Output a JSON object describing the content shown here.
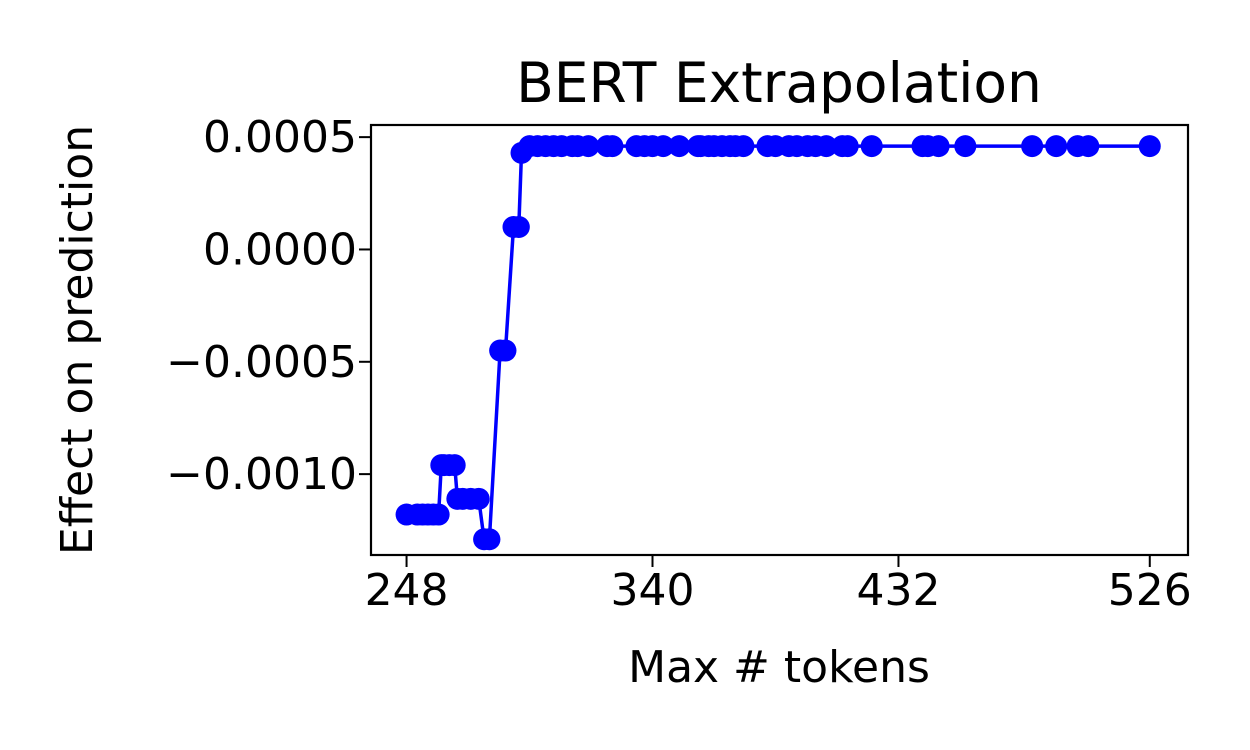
{
  "chart_data": {
    "type": "line",
    "title": "BERT Extrapolation",
    "xlabel": "Max # tokens",
    "ylabel": "Effect on prediction",
    "xlim": [
      234.7,
      540.3
    ],
    "ylim": [
      -0.00136,
      0.000554
    ],
    "x_ticks": [
      248,
      340,
      432,
      526
    ],
    "x_tick_labels": [
      "248",
      "340",
      "432",
      "526"
    ],
    "y_ticks": [
      -0.001,
      -0.0005,
      0.0,
      0.0005
    ],
    "y_tick_labels": [
      "−0.0010",
      "−0.0005",
      "0.0000",
      "0.0005"
    ],
    "grid": false,
    "legend": "none",
    "series": [
      {
        "color": "#0000ff",
        "marker": "circle",
        "x": [
          248,
          252,
          254,
          256,
          258,
          260,
          261,
          262,
          264,
          266,
          267,
          269,
          272,
          275,
          277,
          279,
          283,
          285,
          288,
          290,
          291,
          294,
          297,
          300,
          303,
          306,
          310,
          312,
          316,
          323,
          325,
          334,
          337,
          340,
          344,
          350,
          357,
          358,
          361,
          363,
          366,
          369,
          371,
          374,
          383,
          386,
          391,
          394,
          398,
          401,
          405,
          411,
          413,
          422,
          441,
          443,
          447,
          457,
          482,
          491,
          499,
          503,
          526
        ],
        "y": [
          -0.00118,
          -0.00118,
          -0.00118,
          -0.00118,
          -0.00118,
          -0.00118,
          -0.00096,
          -0.00096,
          -0.00096,
          -0.00096,
          -0.00111,
          -0.00111,
          -0.00111,
          -0.00111,
          -0.00129,
          -0.00129,
          -0.00045,
          -0.00045,
          0.0001,
          0.0001,
          0.00043,
          0.00046,
          0.00046,
          0.00046,
          0.00046,
          0.00046,
          0.00046,
          0.00046,
          0.00046,
          0.00046,
          0.00046,
          0.00046,
          0.00046,
          0.00046,
          0.00046,
          0.00046,
          0.00046,
          0.00046,
          0.00046,
          0.00046,
          0.00046,
          0.00046,
          0.00046,
          0.00046,
          0.00046,
          0.00046,
          0.00046,
          0.00046,
          0.00046,
          0.00046,
          0.00046,
          0.00046,
          0.00046,
          0.00046,
          0.00046,
          0.00046,
          0.00046,
          0.00046,
          0.00046,
          0.00046,
          0.00046,
          0.00046,
          0.00046
        ]
      }
    ]
  }
}
